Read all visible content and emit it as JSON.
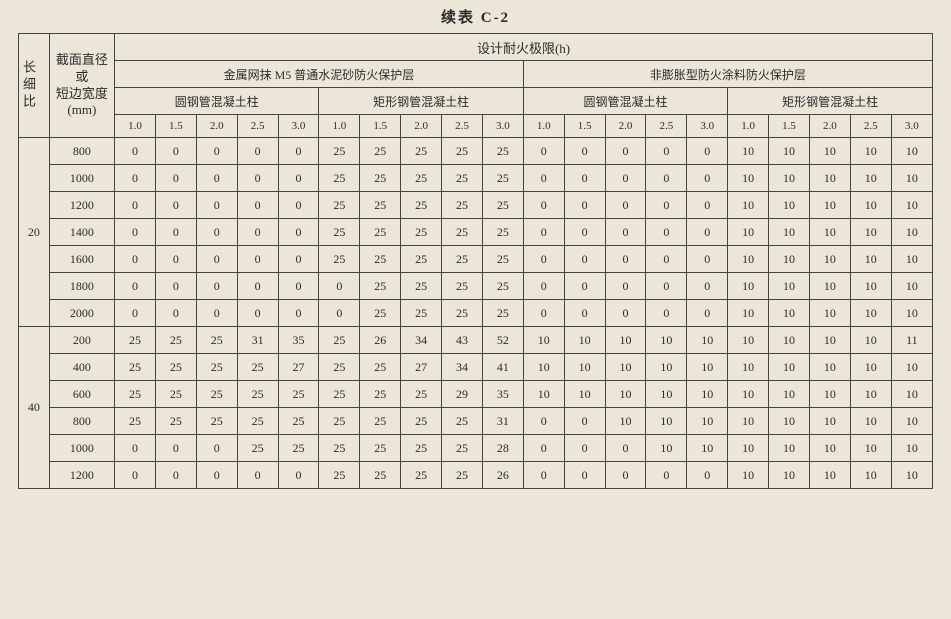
{
  "title": "续表 C-2",
  "header": {
    "ratio_label": "长细比",
    "diameter_label": "截面直径或短边宽度 (mm)",
    "diameter_label_l1": "截面直径",
    "diameter_label_l2": "或",
    "diameter_label_l3": "短边宽度",
    "diameter_label_l4": "(mm)",
    "design_limit": "设计耐火极限(h)",
    "group_a": "金属网抹 M5 普通水泥砂防火保护层",
    "group_b": "非膨胀型防火涂料防火保护层",
    "sub_circle": "圆钢管混凝土柱",
    "sub_rect": "矩形钢管混凝土柱",
    "ticks": [
      "1.0",
      "1.5",
      "2.0",
      "2.5",
      "3.0"
    ]
  },
  "blocks": [
    {
      "ratio": "20",
      "rows": [
        {
          "d": "800",
          "A1": [
            "0",
            "0",
            "0",
            "0",
            "0"
          ],
          "A2": [
            "25",
            "25",
            "25",
            "25",
            "25"
          ],
          "B1": [
            "0",
            "0",
            "0",
            "0",
            "0"
          ],
          "B2": [
            "10",
            "10",
            "10",
            "10",
            "10"
          ]
        },
        {
          "d": "1000",
          "A1": [
            "0",
            "0",
            "0",
            "0",
            "0"
          ],
          "A2": [
            "25",
            "25",
            "25",
            "25",
            "25"
          ],
          "B1": [
            "0",
            "0",
            "0",
            "0",
            "0"
          ],
          "B2": [
            "10",
            "10",
            "10",
            "10",
            "10"
          ]
        },
        {
          "d": "1200",
          "A1": [
            "0",
            "0",
            "0",
            "0",
            "0"
          ],
          "A2": [
            "25",
            "25",
            "25",
            "25",
            "25"
          ],
          "B1": [
            "0",
            "0",
            "0",
            "0",
            "0"
          ],
          "B2": [
            "10",
            "10",
            "10",
            "10",
            "10"
          ]
        },
        {
          "d": "1400",
          "A1": [
            "0",
            "0",
            "0",
            "0",
            "0"
          ],
          "A2": [
            "25",
            "25",
            "25",
            "25",
            "25"
          ],
          "B1": [
            "0",
            "0",
            "0",
            "0",
            "0"
          ],
          "B2": [
            "10",
            "10",
            "10",
            "10",
            "10"
          ]
        },
        {
          "d": "1600",
          "A1": [
            "0",
            "0",
            "0",
            "0",
            "0"
          ],
          "A2": [
            "25",
            "25",
            "25",
            "25",
            "25"
          ],
          "B1": [
            "0",
            "0",
            "0",
            "0",
            "0"
          ],
          "B2": [
            "10",
            "10",
            "10",
            "10",
            "10"
          ]
        },
        {
          "d": "1800",
          "A1": [
            "0",
            "0",
            "0",
            "0",
            "0"
          ],
          "A2": [
            "0",
            "25",
            "25",
            "25",
            "25"
          ],
          "B1": [
            "0",
            "0",
            "0",
            "0",
            "0"
          ],
          "B2": [
            "10",
            "10",
            "10",
            "10",
            "10"
          ]
        },
        {
          "d": "2000",
          "A1": [
            "0",
            "0",
            "0",
            "0",
            "0"
          ],
          "A2": [
            "0",
            "25",
            "25",
            "25",
            "25"
          ],
          "B1": [
            "0",
            "0",
            "0",
            "0",
            "0"
          ],
          "B2": [
            "10",
            "10",
            "10",
            "10",
            "10"
          ]
        }
      ]
    },
    {
      "ratio": "40",
      "rows": [
        {
          "d": "200",
          "A1": [
            "25",
            "25",
            "25",
            "31",
            "35"
          ],
          "A2": [
            "25",
            "26",
            "34",
            "43",
            "52"
          ],
          "B1": [
            "10",
            "10",
            "10",
            "10",
            "10"
          ],
          "B2": [
            "10",
            "10",
            "10",
            "10",
            "11"
          ]
        },
        {
          "d": "400",
          "A1": [
            "25",
            "25",
            "25",
            "25",
            "27"
          ],
          "A2": [
            "25",
            "25",
            "27",
            "34",
            "41"
          ],
          "B1": [
            "10",
            "10",
            "10",
            "10",
            "10"
          ],
          "B2": [
            "10",
            "10",
            "10",
            "10",
            "10"
          ]
        },
        {
          "d": "600",
          "A1": [
            "25",
            "25",
            "25",
            "25",
            "25"
          ],
          "A2": [
            "25",
            "25",
            "25",
            "29",
            "35"
          ],
          "B1": [
            "10",
            "10",
            "10",
            "10",
            "10"
          ],
          "B2": [
            "10",
            "10",
            "10",
            "10",
            "10"
          ]
        },
        {
          "d": "800",
          "A1": [
            "25",
            "25",
            "25",
            "25",
            "25"
          ],
          "A2": [
            "25",
            "25",
            "25",
            "25",
            "31"
          ],
          "B1": [
            "0",
            "0",
            "10",
            "10",
            "10"
          ],
          "B2": [
            "10",
            "10",
            "10",
            "10",
            "10"
          ]
        },
        {
          "d": "1000",
          "A1": [
            "0",
            "0",
            "0",
            "25",
            "25"
          ],
          "A2": [
            "25",
            "25",
            "25",
            "25",
            "28"
          ],
          "B1": [
            "0",
            "0",
            "0",
            "10",
            "10"
          ],
          "B2": [
            "10",
            "10",
            "10",
            "10",
            "10"
          ]
        },
        {
          "d": "1200",
          "A1": [
            "0",
            "0",
            "0",
            "0",
            "0"
          ],
          "A2": [
            "25",
            "25",
            "25",
            "25",
            "26"
          ],
          "B1": [
            "0",
            "0",
            "0",
            "0",
            "0"
          ],
          "B2": [
            "10",
            "10",
            "10",
            "10",
            "10"
          ]
        }
      ]
    }
  ]
}
